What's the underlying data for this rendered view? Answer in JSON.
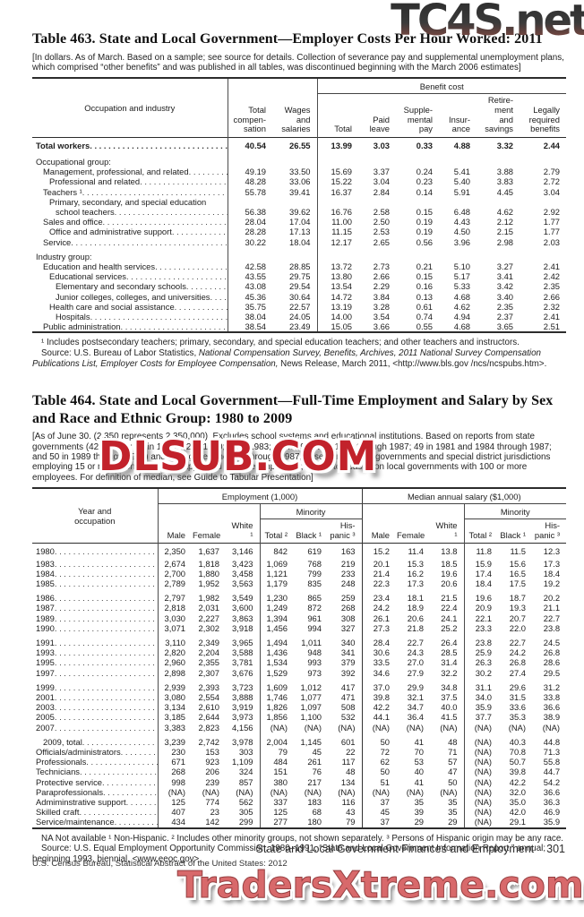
{
  "watermarks": {
    "top_right": "TC4S.net",
    "center": "DLSUB.COM",
    "bottom": "TradersXtreme.com"
  },
  "table463": {
    "title": "Table 463. State and Local Government—Employer Costs Per Hour Worked: 2011",
    "note": "[In dollars. As of March. Based on a sample; see source for details. Collection of severance pay and supplemental unemployment plans, which comprised “other benefits” and was published in all tables, was discontinued beginning with the March 2006 estimates]",
    "stub_header": "Occupation and industry",
    "benefit_group_header": "Benefit cost",
    "col_headers": [
      "Total\ncompen-\nsation",
      "Wages\nand\nsalaries",
      "Total",
      "Paid\nleave",
      "Supple-\nmental\npay",
      "Insur-\nance",
      "Retire-\nment\nand\nsavings",
      "Legally\nrequired\nbenefits"
    ],
    "rows": [
      {
        "label": "Total workers",
        "bold": true,
        "indent": 0,
        "first": true,
        "values": [
          "40.54",
          "26.55",
          "13.99",
          "3.03",
          "0.33",
          "4.88",
          "3.32",
          "2.44"
        ]
      },
      {
        "label": "Occupational group:",
        "indent": 0,
        "gap": true,
        "values": null,
        "leader": false
      },
      {
        "label": "Management, professional, and related",
        "indent": 1,
        "values": [
          "49.19",
          "33.50",
          "15.69",
          "3.37",
          "0.24",
          "5.41",
          "3.88",
          "2.79"
        ]
      },
      {
        "label": "Professional and related",
        "indent": 2,
        "values": [
          "48.28",
          "33.06",
          "15.22",
          "3.04",
          "0.23",
          "5.40",
          "3.83",
          "2.72"
        ]
      },
      {
        "label": "Teachers ¹",
        "indent": 1,
        "values": [
          "55.78",
          "39.41",
          "16.37",
          "2.84",
          "0.14",
          "5.91",
          "4.45",
          "3.04"
        ]
      },
      {
        "label": "Primary, secondary, and special education",
        "indent": 2,
        "values": null,
        "leader": false
      },
      {
        "label": "school teachers",
        "indent": 3,
        "values": [
          "56.38",
          "39.62",
          "16.76",
          "2.58",
          "0.15",
          "6.48",
          "4.62",
          "2.92"
        ]
      },
      {
        "label": "Sales and office",
        "indent": 1,
        "values": [
          "28.04",
          "17.04",
          "11.00",
          "2.50",
          "0.19",
          "4.43",
          "2.12",
          "1.77"
        ]
      },
      {
        "label": "Office and administrative support",
        "indent": 2,
        "values": [
          "28.28",
          "17.13",
          "11.15",
          "2.53",
          "0.19",
          "4.50",
          "2.15",
          "1.77"
        ]
      },
      {
        "label": "Service",
        "indent": 1,
        "values": [
          "30.22",
          "18.04",
          "12.17",
          "2.65",
          "0.56",
          "3.96",
          "2.98",
          "2.03"
        ]
      },
      {
        "label": "Industry group:",
        "indent": 0,
        "gap": true,
        "values": null,
        "leader": false
      },
      {
        "label": "Education and health services",
        "indent": 1,
        "values": [
          "42.58",
          "28.85",
          "13.72",
          "2.73",
          "0.21",
          "5.10",
          "3.27",
          "2.41"
        ]
      },
      {
        "label": "Educational services",
        "indent": 2,
        "values": [
          "43.55",
          "29.75",
          "13.80",
          "2.66",
          "0.15",
          "5.17",
          "3.41",
          "2.42"
        ]
      },
      {
        "label": "Elementary and secondary schools",
        "indent": 3,
        "values": [
          "43.08",
          "29.54",
          "13.54",
          "2.29",
          "0.16",
          "5.33",
          "3.42",
          "2.35"
        ]
      },
      {
        "label": "Junior colleges, colleges, and universities",
        "indent": 3,
        "values": [
          "45.36",
          "30.64",
          "14.72",
          "3.84",
          "0.13",
          "4.68",
          "3.40",
          "2.66"
        ]
      },
      {
        "label": "Health care and social assistance",
        "indent": 2,
        "values": [
          "35.75",
          "22.57",
          "13.19",
          "3.28",
          "0.61",
          "4.62",
          "2.35",
          "2.32"
        ]
      },
      {
        "label": "Hospitals",
        "indent": 3,
        "values": [
          "38.04",
          "24.05",
          "14.00",
          "3.54",
          "0.74",
          "4.94",
          "2.37",
          "2.41"
        ]
      },
      {
        "label": "Public administration",
        "indent": 1,
        "values": [
          "38.54",
          "23.49",
          "15.05",
          "3.66",
          "0.55",
          "4.68",
          "3.65",
          "2.51"
        ]
      }
    ],
    "footnote": "¹ Includes postsecondary teachers; primary, secondary, and special education teachers; and other teachers and instructors.",
    "source_pre": "Source: U.S. Bureau of Labor Statistics, ",
    "source_italic": "National Compensation Survey, Benefits, Archives, 2011 National Survey Compensation Publications List, Employer Costs for Employee Compensation,",
    "source_post": " News Release, March 2011, <http://www.bls.gov /ncs/ncspubs.htm>."
  },
  "table464": {
    "title": "Table 464. State and Local Government—Full-Time Employment and Salary by Sex and Race and Ethnic Group: 1980 to 2009",
    "note": "[As of June 30. (2,350 represents 2,350,000). Excludes school systems and educational institutions. Based on reports from state governments (42 in 1980; 47 in 1983; 42 in 1980; 47 in 1983; 49 in 1981 and 1984 through 1987;  49 in 1981 and 1984 through 1987; and 50 in 1989 through 1997) and local governments. Through 1987, based on all local governments and special district jurisdictions  employing 15 or more nonelected, nonappointed full-time employees; thereafter, based on local governments with 100 or more employees. For definition of median, see Guide to Tabular Presentation]",
    "stub_header": "Year and\noccupation",
    "group_headers": [
      "Employment (1,000)",
      "Median annual salary ($1,000)"
    ],
    "minority_header": "Minority",
    "col_headers": [
      "Male",
      "Female",
      "White ¹",
      "Total ²",
      "Black ¹",
      "His-\npanic ³",
      "Male",
      "Female",
      "White ¹",
      "Total ²",
      "Black ¹",
      "His-\npanic ³"
    ],
    "rows": [
      {
        "label": "1980",
        "indent": 0,
        "first": true,
        "values": [
          "2,350",
          "1,637",
          "3,146",
          "842",
          "619",
          "163",
          "15.2",
          "11.4",
          "13.8",
          "11.8",
          "11.5",
          "12.3"
        ]
      },
      {
        "label": "1983",
        "indent": 0,
        "values": [
          "2,674",
          "1,818",
          "3,423",
          "1,069",
          "768",
          "219",
          "20.1",
          "15.3",
          "18.5",
          "15.9",
          "15.6",
          "17.3"
        ]
      },
      {
        "label": "1984",
        "indent": 0,
        "values": [
          "2,700",
          "1,880",
          "3,458",
          "1,121",
          "799",
          "233",
          "21.4",
          "16.2",
          "19.6",
          "17.4",
          "16.5",
          "18.4"
        ]
      },
      {
        "label": "1985",
        "indent": 0,
        "values": [
          "2,789",
          "1,952",
          "3,563",
          "1,179",
          "835",
          "248",
          "22.3",
          "17.3",
          "20.6",
          "18.4",
          "17.5",
          "19.2"
        ]
      },
      {
        "label": "1986",
        "indent": 0,
        "gap": true,
        "values": [
          "2,797",
          "1,982",
          "3,549",
          "1,230",
          "865",
          "259",
          "23.4",
          "18.1",
          "21.5",
          "19.6",
          "18.7",
          "20.2"
        ]
      },
      {
        "label": "1987",
        "indent": 0,
        "values": [
          "2,818",
          "2,031",
          "3,600",
          "1,249",
          "872",
          "268",
          "24.2",
          "18.9",
          "22.4",
          "20.9",
          "19.3",
          "21.1"
        ]
      },
      {
        "label": "1989",
        "indent": 0,
        "values": [
          "3,030",
          "2,227",
          "3,863",
          "1,394",
          "961",
          "308",
          "26.1",
          "20.6",
          "24.1",
          "22.1",
          "20.7",
          "22.7"
        ]
      },
      {
        "label": "1990",
        "indent": 0,
        "values": [
          "3,071",
          "2,302",
          "3,918",
          "1,456",
          "994",
          "327",
          "27.3",
          "21.8",
          "25.2",
          "23.3",
          "22.0",
          "23.8"
        ]
      },
      {
        "label": "1991",
        "indent": 0,
        "gap": true,
        "values": [
          "3,110",
          "2,349",
          "3,965",
          "1,494",
          "1,011",
          "340",
          "28.4",
          "22.7",
          "26.4",
          "23.8",
          "22.7",
          "24.5"
        ]
      },
      {
        "label": "1993",
        "indent": 0,
        "values": [
          "2,820",
          "2,204",
          "3,588",
          "1,436",
          "948",
          "341",
          "30.6",
          "24.3",
          "28.5",
          "25.9",
          "24.2",
          "26.8"
        ]
      },
      {
        "label": "1995",
        "indent": 0,
        "values": [
          "2,960",
          "2,355",
          "3,781",
          "1,534",
          "993",
          "379",
          "33.5",
          "27.0",
          "31.4",
          "26.3",
          "26.8",
          "28.6"
        ]
      },
      {
        "label": "1997",
        "indent": 0,
        "values": [
          "2,898",
          "2,307",
          "3,676",
          "1,529",
          "973",
          "392",
          "34.6",
          "27.9",
          "32.2",
          "30.2",
          "27.4",
          "29.5"
        ]
      },
      {
        "label": "1999",
        "indent": 0,
        "gap": true,
        "values": [
          "2,939",
          "2,393",
          "3,723",
          "1,609",
          "1,012",
          "417",
          "37.0",
          "29.9",
          "34.8",
          "31.1",
          "29.6",
          "31.2"
        ]
      },
      {
        "label": "2001",
        "indent": 0,
        "values": [
          "3,080",
          "2,554",
          "3,888",
          "1,746",
          "1,077",
          "471",
          "39.8",
          "32.1",
          "37.5",
          "34.0",
          "31.5",
          "33.8"
        ]
      },
      {
        "label": "2003",
        "indent": 0,
        "values": [
          "3,134",
          "2,610",
          "3,919",
          "1,826",
          "1,097",
          "508",
          "42.2",
          "34.7",
          "40.0",
          "35.9",
          "33.6",
          "36.6"
        ]
      },
      {
        "label": "2005",
        "indent": 0,
        "values": [
          "3,185",
          "2,644",
          "3,973",
          "1,856",
          "1,100",
          "532",
          "44.1",
          "36.4",
          "41.5",
          "37.7",
          "35.3",
          "38.9"
        ]
      },
      {
        "label": "2007",
        "indent": 0,
        "values": [
          "3,383",
          "2,823",
          "4,156",
          "(NA)",
          "(NA)",
          "(NA)",
          "(NA)",
          "(NA)",
          "(NA)",
          "(NA)",
          "(NA)",
          "(NA)"
        ]
      },
      {
        "label": "2009, total",
        "indent": 1,
        "gap": true,
        "values": [
          "3,239",
          "2,742",
          "3,978",
          "2,004",
          "1,145",
          "601",
          "50",
          "41",
          "48",
          "(NA)",
          "40.3",
          "44.8"
        ]
      },
      {
        "label": "Officials/administrators",
        "indent": 0,
        "values": [
          "230",
          "153",
          "303",
          "79",
          "45",
          "22",
          "72",
          "70",
          "71",
          "(NA)",
          "70.8",
          "71.3"
        ]
      },
      {
        "label": "Professionals",
        "indent": 0,
        "values": [
          "671",
          "923",
          "1,109",
          "484",
          "261",
          "117",
          "62",
          "53",
          "57",
          "(NA)",
          "50.7",
          "55.8"
        ]
      },
      {
        "label": "Technicians",
        "indent": 0,
        "values": [
          "268",
          "206",
          "324",
          "151",
          "76",
          "48",
          "50",
          "40",
          "47",
          "(NA)",
          "39.8",
          "44.7"
        ]
      },
      {
        "label": "Protective service",
        "indent": 0,
        "values": [
          "998",
          "239",
          "857",
          "380",
          "217",
          "134",
          "51",
          "41",
          "50",
          "(NA)",
          "42.2",
          "54.2"
        ]
      },
      {
        "label": "Paraprofessionals",
        "indent": 0,
        "values": [
          "(NA)",
          "(NA)",
          "(NA)",
          "(NA)",
          "(NA)",
          "(NA)",
          "(NA)",
          "(NA)",
          "(NA)",
          "(NA)",
          "32.0",
          "36.6"
        ]
      },
      {
        "label": "Admiminstrative support",
        "indent": 0,
        "values": [
          "125",
          "774",
          "562",
          "337",
          "183",
          "116",
          "37",
          "35",
          "35",
          "(NA)",
          "35.0",
          "36.3"
        ]
      },
      {
        "label": "Skilled craft",
        "indent": 0,
        "values": [
          "407",
          "23",
          "305",
          "125",
          "68",
          "43",
          "45",
          "39",
          "35",
          "(NA)",
          "42.0",
          "46.9"
        ]
      },
      {
        "label": "Service/maintenance",
        "indent": 0,
        "values": [
          "434",
          "142",
          "299",
          "277",
          "180",
          "79",
          "37",
          "29",
          "29",
          "(NA)",
          "29.1",
          "35.9"
        ]
      }
    ],
    "footnote": "NA Not available ¹ Non-Hispanic. ² Includes other minority groups, not shown separately. ³ Persons of Hispanic origin may be any race.",
    "source": "Source: U.S. Equal Employment Opportunity Commission, 1980–1991, “State and Local Government Information Report,” annual; beginning 1993, biennial, <www.eeoc.gov>."
  },
  "footer": {
    "section": "State and Local Government Finances and Employment",
    "page": "301",
    "imprint": "U.S. Census Bureau, Statistical Abstract of the United States: 2012"
  }
}
